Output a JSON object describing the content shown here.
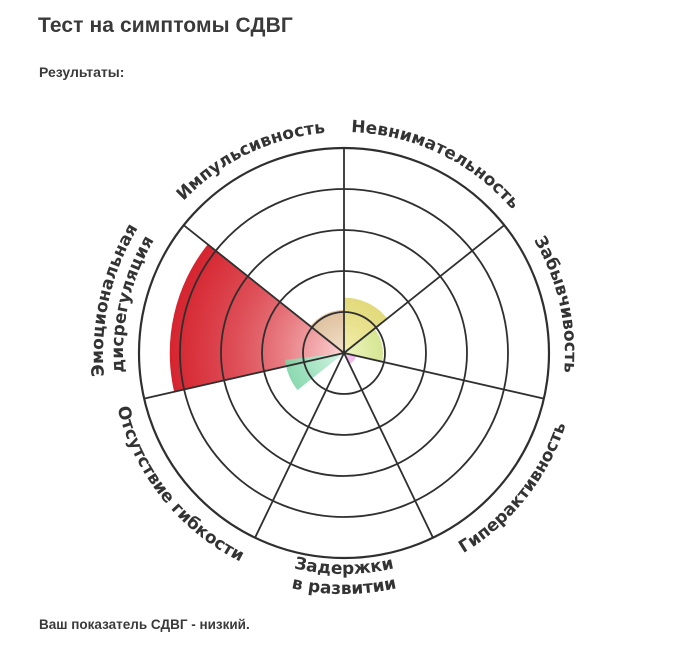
{
  "header": {
    "title": "Тест на симптомы СДВГ",
    "results_label": "Результаты:"
  },
  "footer": {
    "score_text": "Ваш показатель СДВГ - низкий."
  },
  "chart_data": {
    "type": "polar_area",
    "rings": 5,
    "max": 5,
    "start_angle_deg": 0,
    "direction": "clockwise",
    "categories": [
      {
        "label": "Невнимательность",
        "value": 1.35,
        "color_inner": "#f2efb0",
        "color_outer": "#c9b81c"
      },
      {
        "label": "Забывчивость",
        "value": 0.95,
        "color_inner": "#eef5c2",
        "color_outer": "#9ec21c"
      },
      {
        "label": "Гиперактивность",
        "value": 0.3,
        "color_inner": "#f7c6f0",
        "color_outer": "#d63ac8"
      },
      {
        "label": "Задержки в развитии",
        "value": 0,
        "color_inner": "#ffffff",
        "color_outer": "#bbbbbb"
      },
      {
        "label": "Отсутствие гибкости",
        "value": 0,
        "color_inner": "#ffffff",
        "color_outer": "#bbbbbb"
      },
      {
        "label": "Эмоциональная дисрегуляция",
        "value": 4.25,
        "color_inner": "#fbd6d6",
        "color_outer": "#d2101c"
      },
      {
        "label": "Импульсивность",
        "value": 1.05,
        "color_inner": "#f3e2cd",
        "color_outer": "#b57838"
      }
    ],
    "extra_segments": [
      {
        "between": [
          "Отсутствие гибкости",
          "Эмоциональная дисрегуляция"
        ],
        "value": 1.45,
        "color_inner": "#d8f5e6",
        "color_outer": "#25b66a"
      }
    ],
    "labels_multiline": {
      "Задержки в развитии": [
        "Задержки",
        "в развитии"
      ],
      "Эмоциональная дисрегуляция": [
        "Эмоциональная",
        "дисрегуляция"
      ]
    }
  }
}
